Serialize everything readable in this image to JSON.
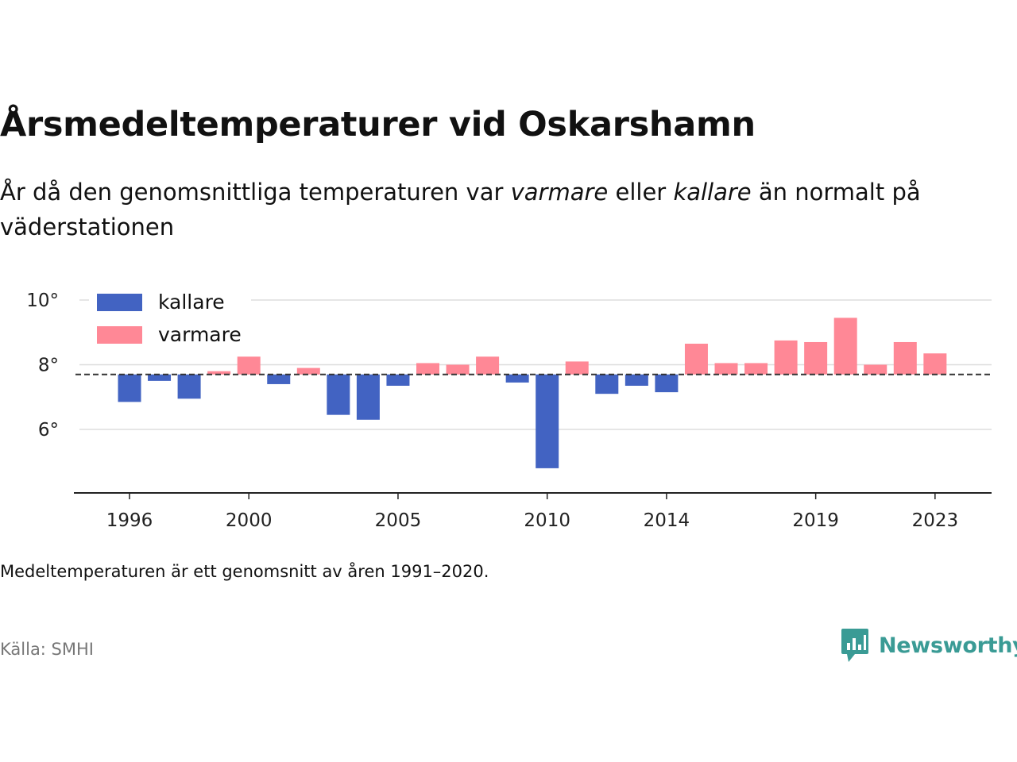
{
  "title": "Årsmedeltemperaturer vid Oskarshamn",
  "subtitle": {
    "part1": "År då den genomsnittliga temperaturen var ",
    "warm_word": "varmare",
    "part2": " eller ",
    "cold_word": "kallare",
    "part3": " än normalt på väderstationen"
  },
  "note": "Medeltemperaturen är ett genomsnitt av åren 1991–2020.",
  "source": "Källa: SMHI",
  "brand": {
    "name": "Newsworthy",
    "icon": "newsworthy-logo-icon",
    "color": "#3a9b95"
  },
  "chart_data": {
    "type": "bar",
    "baseline": 7.7,
    "baseline_style": "dashed",
    "ylim": [
      4.0,
      10.5
    ],
    "yticks": [
      6,
      8,
      10
    ],
    "ytick_labels": [
      "6°",
      "8°",
      "10°"
    ],
    "xticks": [
      1996,
      2000,
      2005,
      2010,
      2014,
      2019,
      2023
    ],
    "xtick_labels": [
      "1996",
      "2000",
      "2005",
      "2010",
      "2014",
      "2019",
      "2023"
    ],
    "grid": "horizontal",
    "legend_position": "top-left",
    "colors": {
      "kallare": "#4263c2",
      "varmare": "#ff8896"
    },
    "series": [
      {
        "name": "kallare",
        "color": "#4263c2"
      },
      {
        "name": "varmare",
        "color": "#ff8896"
      }
    ],
    "categories": [
      1996,
      1997,
      1998,
      1999,
      2000,
      2001,
      2002,
      2003,
      2004,
      2005,
      2006,
      2007,
      2008,
      2009,
      2010,
      2011,
      2012,
      2013,
      2014,
      2015,
      2016,
      2017,
      2018,
      2019,
      2020,
      2021,
      2022,
      2023
    ],
    "values": [
      6.85,
      7.5,
      6.95,
      7.8,
      8.25,
      7.4,
      7.9,
      6.45,
      6.3,
      7.35,
      8.05,
      8.0,
      8.25,
      7.45,
      4.8,
      8.1,
      7.1,
      7.35,
      7.15,
      8.65,
      8.05,
      8.05,
      8.75,
      8.7,
      9.45,
      8.0,
      8.7,
      8.35
    ]
  }
}
